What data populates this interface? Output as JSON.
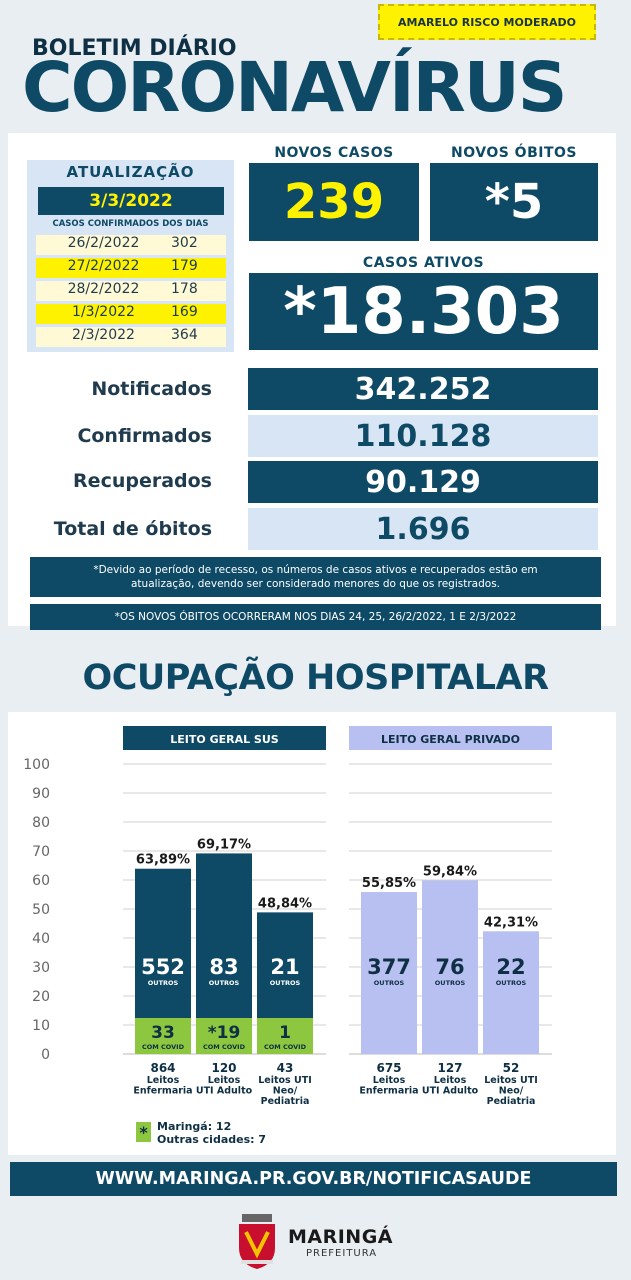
{
  "risk_label": "AMARELO RISCO MODERADO",
  "header": {
    "subtitle": "BOLETIM DIÁRIO",
    "title": "CORONAVÍRUS"
  },
  "update": {
    "label": "ATUALIZAÇÃO",
    "date": "3/3/2022",
    "sub": "CASOS CONFIRMADOS DOS DIAS",
    "rows": [
      {
        "date": "26/2/2022",
        "value": "302",
        "bg": "#fff9d6"
      },
      {
        "date": "27/2/2022",
        "value": "179",
        "bg": "#fff200"
      },
      {
        "date": "28/2/2022",
        "value": "178",
        "bg": "#fff9d6"
      },
      {
        "date": "1/3/2022",
        "value": "169",
        "bg": "#fff200"
      },
      {
        "date": "2/3/2022",
        "value": "364",
        "bg": "#fff9d6"
      }
    ]
  },
  "novos_casos": {
    "label": "NOVOS CASOS",
    "value": "239"
  },
  "novos_obitos": {
    "label": "NOVOS ÓBITOS",
    "value": "*5"
  },
  "casos_ativos": {
    "label": "CASOS ATIVOS",
    "value": "*18.303"
  },
  "stats": [
    {
      "label": "Notificados",
      "value": "342.252"
    },
    {
      "label": "Confirmados",
      "value": "110.128"
    },
    {
      "label": "Recuperados",
      "value": "90.129"
    },
    {
      "label": "Total de óbitos",
      "value": "1.696"
    }
  ],
  "notes": {
    "recess": "*Devido ao período de recesso, os números de casos ativos e recuperados estão em atualização, devendo ser considerado menores do que os registrados.",
    "deaths": "*OS NOVOS  ÓBITOS OCORRERAM NOS DIAS 24, 25, 26/2/2022, 1 E 2/3/2022"
  },
  "ocupacao_title": "OCUPAÇÃO HOSPITALAR",
  "colors": {
    "dark_blue": "#0e4a66",
    "green": "#8dc63f",
    "lavender": "#b8c0f2",
    "yellow": "#fff200"
  },
  "chart_data": {
    "type": "bar",
    "ylim": [
      0,
      100
    ],
    "yticks": [
      "0",
      "10",
      "20",
      "30",
      "40",
      "50",
      "60",
      "70",
      "80",
      "90",
      "100"
    ],
    "groups": [
      {
        "title": "LEITO GERAL SUS",
        "bars": [
          {
            "percent_label": "63,89%",
            "value": 63.89,
            "outros": "552",
            "outros_label": "OUTROS",
            "covid": "33",
            "covid_label": "COM COVID",
            "count": "864",
            "category": [
              "Leitos",
              "Enfermaria"
            ]
          },
          {
            "percent_label": "69,17%",
            "value": 69.17,
            "outros": "83",
            "outros_label": "OUTROS",
            "covid": "*19",
            "covid_label": "COM COVID",
            "count": "120",
            "category": [
              "Leitos",
              "UTI Adulto"
            ]
          },
          {
            "percent_label": "48,84%",
            "value": 48.84,
            "outros": "21",
            "outros_label": "OUTROS",
            "covid": "1",
            "covid_label": "COM COVID",
            "count": "43",
            "category": [
              "Leitos UTI",
              "Neo/",
              "Pediatria"
            ]
          }
        ]
      },
      {
        "title": "LEITO GERAL PRIVADO",
        "bars": [
          {
            "percent_label": "55,85%",
            "value": 55.85,
            "outros": "377",
            "outros_label": "OUTROS",
            "count": "675",
            "category": [
              "Leitos",
              "Enfermaria"
            ]
          },
          {
            "percent_label": "59,84%",
            "value": 59.84,
            "outros": "76",
            "outros_label": "OUTROS",
            "count": "127",
            "category": [
              "Leitos",
              "UTI Adulto"
            ]
          },
          {
            "percent_label": "42,31%",
            "value": 42.31,
            "outros": "22",
            "outros_label": "OUTROS",
            "count": "52",
            "category": [
              "Leitos UTI",
              "Neo/",
              "Pediatria"
            ]
          }
        ]
      }
    ],
    "footnote": {
      "marker": "*",
      "lines": [
        "Maringá: 12",
        "Outras cidades: 7"
      ]
    }
  },
  "website": "WWW.MARINGA.PR.GOV.BR/NOTIFICASAUDE",
  "logo": {
    "name": "MARINGÁ",
    "sub": "PREFEITURA"
  }
}
